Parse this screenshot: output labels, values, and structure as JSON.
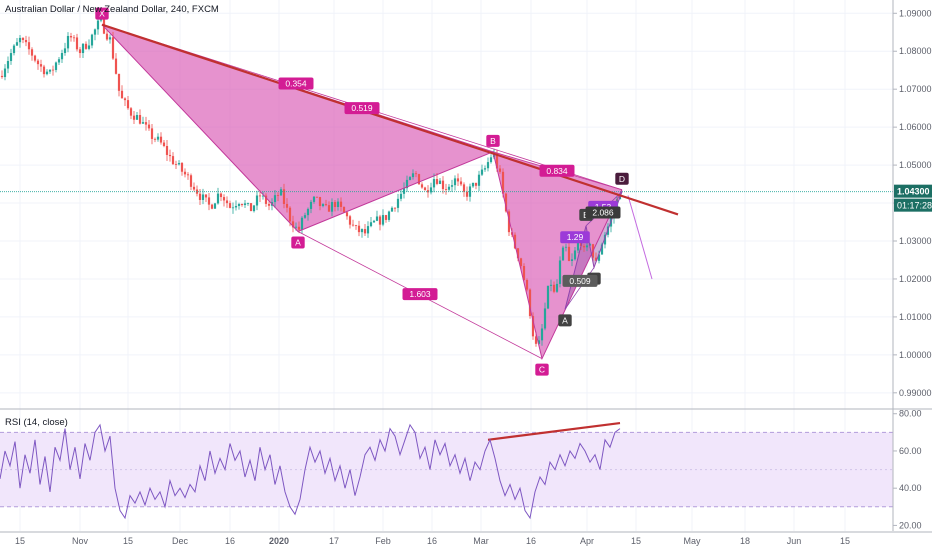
{
  "chart_data": {
    "type": "candlestick",
    "title": "Australian Dollar / New Zealand Dollar, 240, FXCM",
    "x_ticks": [
      "15",
      "Nov",
      "15",
      "Dec",
      "16",
      "2020",
      "17",
      "Feb",
      "16",
      "Mar",
      "16",
      "Apr",
      "15",
      "May",
      "18",
      "Jun",
      "15"
    ],
    "price_axis": {
      "ticks": [
        "1.09000",
        "1.08000",
        "1.07000",
        "1.06000",
        "1.05000",
        "1.04000",
        "1.03000",
        "1.02000",
        "1.01000",
        "1.00000",
        "0.99000"
      ],
      "ylim": [
        0.986,
        1.0935
      ],
      "last_price": "1.04300",
      "countdown": "01:17:28"
    },
    "rsi_panel": {
      "label": "RSI (14, close)",
      "ticks": [
        "80.00",
        "60.00",
        "40.00",
        "20.00"
      ],
      "ylim": [
        17,
        82
      ],
      "band": [
        30,
        70
      ]
    },
    "price_path": [
      [
        0,
        1.0735
      ],
      [
        10,
        1.079
      ],
      [
        20,
        1.083
      ],
      [
        30,
        1.08
      ],
      [
        40,
        1.076
      ],
      [
        50,
        1.074
      ],
      [
        60,
        1.079
      ],
      [
        70,
        1.084
      ],
      [
        80,
        1.08
      ],
      [
        90,
        1.083
      ],
      [
        100,
        1.088
      ],
      [
        110,
        1.083
      ],
      [
        115,
        1.076
      ],
      [
        120,
        1.068
      ],
      [
        130,
        1.064
      ],
      [
        140,
        1.062
      ],
      [
        150,
        1.058
      ],
      [
        160,
        1.056
      ],
      [
        170,
        1.052
      ],
      [
        180,
        1.049
      ],
      [
        190,
        1.046
      ],
      [
        200,
        1.042
      ],
      [
        210,
        1.039
      ],
      [
        220,
        1.043
      ],
      [
        230,
        1.039
      ],
      [
        240,
        1.041
      ],
      [
        250,
        1.038
      ],
      [
        260,
        1.042
      ],
      [
        270,
        1.039
      ],
      [
        280,
        1.043
      ],
      [
        290,
        1.036
      ],
      [
        298,
        1.0325
      ],
      [
        305,
        1.037
      ],
      [
        315,
        1.041
      ],
      [
        325,
        1.038
      ],
      [
        335,
        1.04
      ],
      [
        345,
        1.037
      ],
      [
        355,
        1.033
      ],
      [
        365,
        1.032
      ],
      [
        375,
        1.035
      ],
      [
        385,
        1.036
      ],
      [
        395,
        1.04
      ],
      [
        405,
        1.044
      ],
      [
        415,
        1.048
      ],
      [
        425,
        1.043
      ],
      [
        435,
        1.047
      ],
      [
        445,
        1.044
      ],
      [
        455,
        1.046
      ],
      [
        465,
        1.042
      ],
      [
        475,
        1.045
      ],
      [
        485,
        1.049
      ],
      [
        493,
        1.0535
      ],
      [
        500,
        1.047
      ],
      [
        505,
        1.039
      ],
      [
        510,
        1.032
      ],
      [
        520,
        1.025
      ],
      [
        528,
        1.015
      ],
      [
        535,
        1.002
      ],
      [
        540,
        1.003
      ],
      [
        545,
        1.012
      ],
      [
        550,
        1.02
      ],
      [
        555,
        1.015
      ],
      [
        560,
        1.024
      ],
      [
        565,
        1.029
      ],
      [
        570,
        1.023
      ],
      [
        575,
        1.027
      ],
      [
        580,
        1.031
      ],
      [
        585,
        1.026
      ],
      [
        590,
        1.03
      ],
      [
        595,
        1.023
      ],
      [
        600,
        1.028
      ],
      [
        605,
        1.032
      ],
      [
        610,
        1.035
      ],
      [
        615,
        1.039
      ],
      [
        620,
        1.043
      ]
    ],
    "rsi_path": [
      [
        0,
        45
      ],
      [
        5,
        60
      ],
      [
        10,
        52
      ],
      [
        15,
        65
      ],
      [
        20,
        40
      ],
      [
        25,
        58
      ],
      [
        30,
        48
      ],
      [
        35,
        66
      ],
      [
        40,
        42
      ],
      [
        45,
        57
      ],
      [
        50,
        38
      ],
      [
        55,
        62
      ],
      [
        60,
        55
      ],
      [
        65,
        72
      ],
      [
        70,
        50
      ],
      [
        75,
        62
      ],
      [
        80,
        45
      ],
      [
        85,
        64
      ],
      [
        90,
        55
      ],
      [
        95,
        70
      ],
      [
        100,
        74
      ],
      [
        105,
        60
      ],
      [
        110,
        68
      ],
      [
        115,
        40
      ],
      [
        120,
        28
      ],
      [
        125,
        24
      ],
      [
        130,
        36
      ],
      [
        135,
        32
      ],
      [
        140,
        38
      ],
      [
        145,
        31
      ],
      [
        150,
        40
      ],
      [
        155,
        34
      ],
      [
        160,
        38
      ],
      [
        165,
        30
      ],
      [
        170,
        44
      ],
      [
        175,
        36
      ],
      [
        180,
        40
      ],
      [
        185,
        35
      ],
      [
        190,
        42
      ],
      [
        195,
        38
      ],
      [
        200,
        52
      ],
      [
        205,
        44
      ],
      [
        210,
        60
      ],
      [
        215,
        48
      ],
      [
        220,
        56
      ],
      [
        225,
        50
      ],
      [
        230,
        64
      ],
      [
        235,
        55
      ],
      [
        240,
        60
      ],
      [
        245,
        46
      ],
      [
        250,
        55
      ],
      [
        255,
        44
      ],
      [
        260,
        62
      ],
      [
        265,
        50
      ],
      [
        270,
        58
      ],
      [
        275,
        42
      ],
      [
        280,
        52
      ],
      [
        285,
        38
      ],
      [
        290,
        30
      ],
      [
        295,
        26
      ],
      [
        300,
        34
      ],
      [
        305,
        50
      ],
      [
        310,
        62
      ],
      [
        315,
        54
      ],
      [
        320,
        60
      ],
      [
        325,
        48
      ],
      [
        330,
        56
      ],
      [
        335,
        44
      ],
      [
        340,
        52
      ],
      [
        345,
        40
      ],
      [
        350,
        50
      ],
      [
        355,
        36
      ],
      [
        360,
        46
      ],
      [
        365,
        58
      ],
      [
        370,
        62
      ],
      [
        375,
        55
      ],
      [
        380,
        66
      ],
      [
        385,
        60
      ],
      [
        390,
        72
      ],
      [
        395,
        68
      ],
      [
        400,
        58
      ],
      [
        405,
        66
      ],
      [
        410,
        74
      ],
      [
        415,
        70
      ],
      [
        420,
        56
      ],
      [
        425,
        62
      ],
      [
        430,
        50
      ],
      [
        435,
        66
      ],
      [
        440,
        58
      ],
      [
        445,
        64
      ],
      [
        450,
        52
      ],
      [
        455,
        58
      ],
      [
        460,
        48
      ],
      [
        465,
        56
      ],
      [
        470,
        44
      ],
      [
        475,
        54
      ],
      [
        480,
        50
      ],
      [
        485,
        60
      ],
      [
        490,
        66
      ],
      [
        495,
        56
      ],
      [
        500,
        44
      ],
      [
        505,
        36
      ],
      [
        510,
        42
      ],
      [
        515,
        34
      ],
      [
        520,
        40
      ],
      [
        525,
        28
      ],
      [
        530,
        24
      ],
      [
        535,
        38
      ],
      [
        540,
        46
      ],
      [
        545,
        42
      ],
      [
        550,
        54
      ],
      [
        555,
        50
      ],
      [
        560,
        58
      ],
      [
        565,
        52
      ],
      [
        570,
        60
      ],
      [
        575,
        56
      ],
      [
        580,
        64
      ],
      [
        585,
        60
      ],
      [
        590,
        54
      ],
      [
        595,
        58
      ],
      [
        600,
        50
      ],
      [
        605,
        66
      ],
      [
        610,
        62
      ],
      [
        615,
        70
      ],
      [
        620,
        72
      ]
    ],
    "harmonic_patterns": [
      {
        "style": "large",
        "points": [
          {
            "label": "X",
            "x": 102,
            "y": 1.087
          },
          {
            "label": "A",
            "x": 298,
            "y": 1.0325
          },
          {
            "label": "B",
            "x": 493,
            "y": 1.0535
          },
          {
            "label": "C",
            "x": 542,
            "y": 0.999
          },
          {
            "label": "D",
            "x": 622,
            "y": 1.0435
          }
        ],
        "ratios": [
          {
            "text": "0.354",
            "x": 296,
            "y": 1.0715
          },
          {
            "text": "0.519",
            "x": 362,
            "y": 1.065
          },
          {
            "text": "0.834",
            "x": 557,
            "y": 1.0485
          },
          {
            "text": "1.603",
            "x": 420,
            "y": 1.016
          }
        ]
      },
      {
        "style": "small",
        "points": [
          {
            "label": "A",
            "x": 565,
            "y": 1.012
          },
          {
            "label": "B",
            "x": 586,
            "y": 1.034
          },
          {
            "label": "C",
            "x": 594,
            "y": 1.023
          },
          {
            "label": "D",
            "x": 622,
            "y": 1.043
          }
        ],
        "ratios": [
          {
            "text": "1.29",
            "x": 575,
            "y": 1.031
          },
          {
            "text": "1.53",
            "x": 603,
            "y": 1.039
          },
          {
            "text": "2.086",
            "x": 603,
            "y": 1.0375
          },
          {
            "text": "0.509",
            "x": 580,
            "y": 1.0195
          }
        ]
      }
    ],
    "trendlines": [
      {
        "name": "price-resistance",
        "from": [
          102,
          1.087
        ],
        "to": [
          678,
          1.037
        ]
      },
      {
        "name": "rsi-divergence",
        "from": [
          488,
          66
        ],
        "to": [
          620,
          75
        ]
      }
    ],
    "projection": {
      "from": [
        628,
        1.042
      ],
      "to": [
        652,
        1.02
      ]
    },
    "colors": {
      "up": "#26a69a",
      "down": "#ef5350",
      "pattern_fill": "#d957b4",
      "pattern_line": "#c2389a",
      "label": "#d31c94",
      "small_fill": "#a65fb1",
      "trend": "#c03030",
      "rsi_line": "#7e57c2",
      "rsi_band": "#f1e6fb",
      "price_line": "#26a69a",
      "countdown_bg": "#1c6f64",
      "small_label_bg": "#424242",
      "ratio_purple": "#9c3ad8"
    }
  }
}
